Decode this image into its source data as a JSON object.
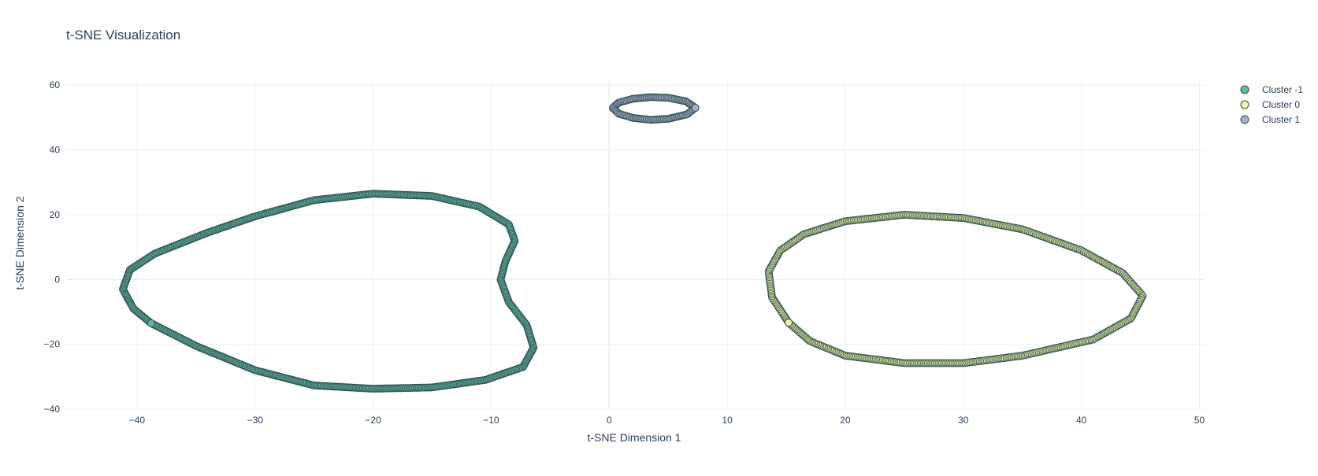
{
  "chart_data": {
    "type": "scatter",
    "title": "t-SNE Visualization",
    "xlabel": "t-SNE Dimension 1",
    "ylabel": "t-SNE Dimension 2",
    "xlim": [
      -46,
      50.5
    ],
    "ylim": [
      -40,
      62
    ],
    "xticks": [
      -40,
      -30,
      -20,
      -10,
      0,
      10,
      20,
      30,
      40,
      50
    ],
    "yticks": [
      -40,
      -20,
      0,
      20,
      40,
      60
    ],
    "xtick_labels": [
      "−40",
      "−30",
      "−20",
      "−10",
      "0",
      "10",
      "20",
      "30",
      "40",
      "50"
    ],
    "ytick_labels": [
      "−40",
      "−20",
      "0",
      "20",
      "40",
      "60"
    ],
    "grid": true,
    "legend_position": "top-right",
    "series": [
      {
        "name": "Cluster -1",
        "color": "#5fb8a3",
        "marker_outline": "#2f4f4f",
        "points": [
          [
            -38.8,
            -13.5
          ],
          [
            -40.3,
            -9.0
          ],
          [
            -41.2,
            -3.0
          ],
          [
            -40.6,
            3.0
          ],
          [
            -38.5,
            8.0
          ],
          [
            -34.0,
            14.5
          ],
          [
            -30.0,
            19.5
          ],
          [
            -25.0,
            24.5
          ],
          [
            -20.0,
            26.5
          ],
          [
            -15.0,
            25.8
          ],
          [
            -11.0,
            22.5
          ],
          [
            -8.5,
            17.0
          ],
          [
            -8.0,
            12.0
          ],
          [
            -8.8,
            5.5
          ],
          [
            -9.2,
            0.0
          ],
          [
            -8.5,
            -7.0
          ],
          [
            -7.0,
            -14.0
          ],
          [
            -6.4,
            -21.0
          ],
          [
            -7.3,
            -27.0
          ],
          [
            -10.5,
            -31.0
          ],
          [
            -15.0,
            -33.3
          ],
          [
            -20.0,
            -33.7
          ],
          [
            -25.0,
            -32.7
          ],
          [
            -30.0,
            -28.0
          ],
          [
            -35.0,
            -20.5
          ],
          [
            -38.8,
            -13.5
          ]
        ]
      },
      {
        "name": "Cluster 0",
        "color": "#f2f5a3",
        "marker_outline": "#2f4f4f",
        "points": [
          [
            15.2,
            -13.3
          ],
          [
            13.8,
            -5.5
          ],
          [
            13.5,
            2.5
          ],
          [
            14.5,
            9.0
          ],
          [
            16.5,
            14.0
          ],
          [
            20.0,
            18.0
          ],
          [
            25.0,
            20.0
          ],
          [
            30.0,
            19.0
          ],
          [
            35.0,
            15.5
          ],
          [
            40.0,
            9.0
          ],
          [
            43.5,
            2.0
          ],
          [
            45.2,
            -5.0
          ],
          [
            44.2,
            -12.0
          ],
          [
            41.0,
            -18.5
          ],
          [
            35.0,
            -23.5
          ],
          [
            30.0,
            -25.8
          ],
          [
            25.0,
            -25.8
          ],
          [
            20.0,
            -23.5
          ],
          [
            17.0,
            -19.0
          ],
          [
            15.2,
            -13.3
          ]
        ]
      },
      {
        "name": "Cluster 1",
        "color": "#a9afcf",
        "marker_outline": "#2f4f4f",
        "points": [
          [
            7.3,
            53.0
          ],
          [
            6.5,
            55.0
          ],
          [
            5.0,
            56.1
          ],
          [
            3.5,
            56.3
          ],
          [
            2.0,
            55.8
          ],
          [
            0.8,
            54.6
          ],
          [
            0.3,
            53.0
          ],
          [
            0.8,
            51.2
          ],
          [
            2.0,
            49.9
          ],
          [
            3.5,
            49.3
          ],
          [
            5.0,
            49.6
          ],
          [
            6.6,
            51.0
          ],
          [
            7.3,
            53.0
          ]
        ]
      }
    ]
  }
}
